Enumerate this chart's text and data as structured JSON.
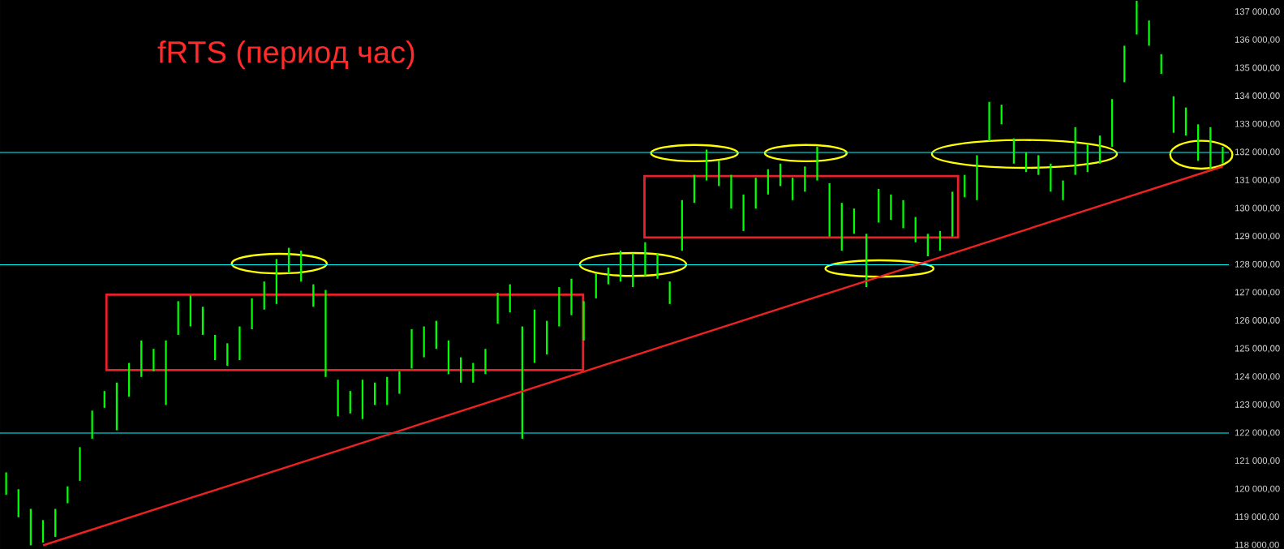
{
  "chart_data": {
    "type": "bar",
    "title": "fRTS (период час)",
    "categories": [
      null,
      null,
      null,
      null,
      null,
      null,
      null,
      null,
      null,
      null,
      null,
      null,
      null,
      null,
      null,
      null,
      null,
      null,
      null,
      null,
      null,
      null,
      null,
      null,
      null,
      null,
      null,
      null,
      null,
      null,
      null,
      null,
      null,
      null,
      null,
      null,
      null,
      null,
      null,
      null,
      null,
      null,
      null,
      null,
      null,
      null,
      null,
      null,
      null,
      null,
      null,
      null,
      null,
      null,
      null,
      null,
      null,
      null,
      null,
      null,
      null,
      null,
      null,
      null,
      null,
      null,
      null,
      null,
      null,
      null,
      null,
      null,
      null,
      null,
      null,
      null,
      null,
      null,
      null,
      null,
      null,
      null,
      null,
      null,
      null,
      null,
      null,
      null,
      null,
      null,
      null,
      null,
      null,
      null,
      null,
      null,
      null,
      null,
      null,
      null
    ],
    "series": [
      {
        "color": "#00ff00",
        "base": [
          119800,
          119000,
          118000,
          118100,
          118300,
          119500,
          120300,
          121800,
          122900,
          122100,
          123300,
          124000,
          124200,
          123000,
          125500,
          125800,
          125500,
          124600,
          124400,
          124600,
          125700,
          126400,
          126600,
          127700,
          127400,
          126500,
          124000,
          122600,
          122700,
          122500,
          123000,
          123000,
          123400,
          124300,
          124700,
          125000,
          124100,
          123800,
          123800,
          124100,
          125900,
          126300,
          121800,
          124500,
          124800,
          125800,
          126200,
          125300,
          126800,
          127300,
          127400,
          127200,
          127600,
          127500,
          126600,
          128500,
          130200,
          131000,
          130800,
          130000,
          129200,
          130000,
          130500,
          130800,
          130300,
          130600,
          131000,
          129000,
          128500,
          129100,
          127200,
          129500,
          129600,
          129300,
          128800,
          128300,
          128500,
          129000,
          130400,
          130300,
          132400,
          133000,
          131600,
          131300,
          131200,
          130600,
          130300,
          131200,
          131300,
          131600,
          132200,
          134500,
          136200,
          135800,
          134800,
          132700,
          132600,
          131700,
          131400,
          131600
        ],
        "values": [
          800,
          1000,
          1300,
          800,
          1000,
          600,
          1200,
          1000,
          600,
          1700,
          1200,
          1300,
          800,
          2300,
          1200,
          1100,
          1000,
          900,
          800,
          1200,
          1100,
          1000,
          1600,
          900,
          1100,
          800,
          3100,
          1300,
          800,
          1400,
          800,
          1000,
          800,
          1400,
          1100,
          1000,
          1200,
          900,
          700,
          900,
          1100,
          1000,
          4000,
          1900,
          1200,
          1400,
          1300,
          1400,
          900,
          600,
          1100,
          1200,
          1200,
          900,
          800,
          1800,
          1000,
          1100,
          900,
          1200,
          1300,
          1100,
          900,
          800,
          800,
          900,
          1200,
          1900,
          1700,
          900,
          1900,
          1200,
          900,
          1000,
          900,
          800,
          700,
          1600,
          800,
          1600,
          1400,
          700,
          900,
          700,
          700,
          1000,
          700,
          1700,
          1000,
          1000,
          1700,
          1300,
          1200,
          900,
          700,
          1300,
          1000,
          1300,
          1500,
          600
        ]
      },
      {
        "type": "line",
        "color": "#ee2222",
        "values": [
          null,
          null,
          null,
          118000,
          null,
          null,
          null,
          null,
          null,
          null,
          null,
          null,
          null,
          null,
          null,
          null,
          null,
          null,
          null,
          null,
          null,
          null,
          null,
          null,
          null,
          null,
          null,
          null,
          null,
          null,
          null,
          null,
          null,
          null,
          null,
          null,
          null,
          null,
          null,
          null,
          null,
          null,
          null,
          null,
          null,
          null,
          null,
          null,
          null,
          null,
          null,
          null,
          null,
          null,
          null,
          null,
          null,
          null,
          null,
          null,
          null,
          null,
          null,
          null,
          null,
          null,
          null,
          null,
          null,
          null,
          null,
          null,
          null,
          null,
          null,
          null,
          null,
          null,
          null,
          null,
          null,
          null,
          null,
          null,
          null,
          null,
          null,
          null,
          null,
          null,
          null,
          null,
          null,
          null,
          null,
          null,
          null,
          null,
          null,
          131500
        ]
      }
    ],
    "ylim": [
      117870,
      137430
    ],
    "yticks": [
      {
        "value": 118000,
        "label": "118 000,00"
      },
      {
        "value": 119000,
        "label": "119 000,00"
      },
      {
        "value": 120000,
        "label": "120 000,00"
      },
      {
        "value": 121000,
        "label": "121 000,00"
      },
      {
        "value": 122000,
        "label": "122 000,00"
      },
      {
        "value": 123000,
        "label": "123 000,00"
      },
      {
        "value": 124000,
        "label": "124 000,00"
      },
      {
        "value": 125000,
        "label": "125 000,00"
      },
      {
        "value": 126000,
        "label": "126 000,00"
      },
      {
        "value": 127000,
        "label": "127 000,00"
      },
      {
        "value": 128000,
        "label": "128 000,00"
      },
      {
        "value": 129000,
        "label": "129 000,00"
      },
      {
        "value": 130000,
        "label": "130 000,00"
      },
      {
        "value": 131000,
        "label": "131 000,00"
      },
      {
        "value": 132000,
        "label": "132 000,00"
      },
      {
        "value": 133000,
        "label": "133 000,00"
      },
      {
        "value": 134000,
        "label": "134 000,00"
      },
      {
        "value": 135000,
        "label": "135 000,00"
      },
      {
        "value": 136000,
        "label": "136 000,00"
      },
      {
        "value": 137000,
        "label": "137 000,00"
      }
    ],
    "ref_lines": [
      {
        "axis": "y",
        "value": 132000,
        "color": "#00ffff"
      },
      {
        "axis": "y",
        "value": 128000,
        "color": "#00ffff"
      },
      {
        "axis": "y",
        "value": 122000,
        "color": "#00ffff"
      }
    ],
    "tick_labels": "y"
  }
}
